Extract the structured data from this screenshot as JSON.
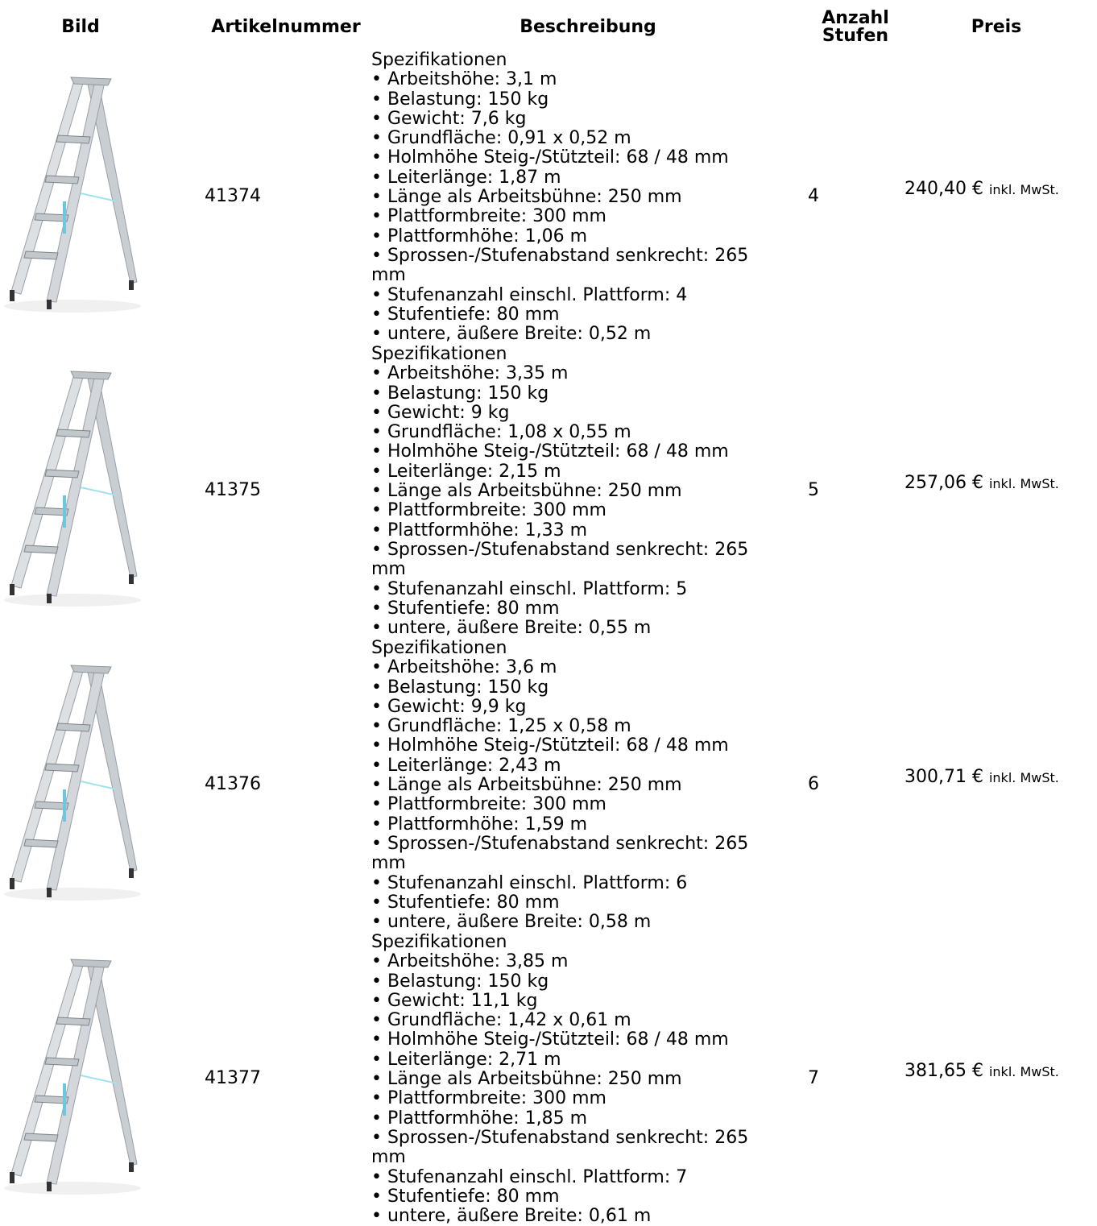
{
  "header": {
    "image": "Bild",
    "article": "Artikelnummer",
    "description": "Beschreibung",
    "steps": "Anzahl Stufen",
    "price": "Preis"
  },
  "rows": [
    {
      "article": "41374",
      "heading": "Spezifikationen",
      "specs": [
        "• Arbeitshöhe: 3,1 m",
        "• Belastung: 150 kg",
        "• Gewicht: 7,6 kg",
        "• Grundfläche: 0,91 x 0,52 m",
        "• Holmhöhe Steig-/Stützteil: 68 / 48 mm",
        "• Leiterlänge: 1,87 m",
        "• Länge als Arbeitsbühne: 250 mm",
        "• Plattformbreite: 300 mm",
        "• Plattformhöhe: 1,06 m",
        "• Sprossen-/Stufenabstand senkrecht: 265 mm",
        "• Stufenanzahl einschl. Plattform: 4",
        "• Stufentiefe: 80 mm",
        "• untere, äußere Breite: 0,52 m"
      ],
      "steps": "4",
      "price": "240,40 €",
      "price_note": "inkl. MwSt."
    },
    {
      "article": "41375",
      "heading": "Spezifikationen",
      "specs": [
        "• Arbeitshöhe: 3,35 m",
        "• Belastung: 150 kg",
        "• Gewicht: 9 kg",
        "• Grundfläche: 1,08 x 0,55 m",
        "• Holmhöhe Steig-/Stützteil: 68 / 48 mm",
        "• Leiterlänge: 2,15 m",
        "• Länge als Arbeitsbühne: 250 mm",
        "• Plattformbreite: 300 mm",
        "• Plattformhöhe: 1,33 m",
        "• Sprossen-/Stufenabstand senkrecht: 265 mm",
        "• Stufenanzahl einschl. Plattform: 5",
        "• Stufentiefe: 80 mm",
        "• untere, äußere Breite: 0,55 m"
      ],
      "steps": "5",
      "price": "257,06 €",
      "price_note": "inkl. MwSt."
    },
    {
      "article": "41376",
      "heading": "Spezifikationen",
      "specs": [
        "• Arbeitshöhe: 3,6 m",
        "• Belastung: 150 kg",
        "• Gewicht: 9,9 kg",
        "• Grundfläche: 1,25 x 0,58 m",
        "• Holmhöhe Steig-/Stützteil: 68 / 48 mm",
        "• Leiterlänge: 2,43 m",
        "• Länge als Arbeitsbühne: 250 mm",
        "• Plattformbreite: 300 mm",
        "• Plattformhöhe: 1,59 m",
        "• Sprossen-/Stufenabstand senkrecht: 265 mm",
        "• Stufenanzahl einschl. Plattform: 6",
        "• Stufentiefe: 80 mm",
        "• untere, äußere Breite: 0,58 m"
      ],
      "steps": "6",
      "price": "300,71 €",
      "price_note": "inkl. MwSt."
    },
    {
      "article": "41377",
      "heading": "Spezifikationen",
      "specs": [
        "• Arbeitshöhe: 3,85 m",
        "• Belastung: 150 kg",
        "• Gewicht: 11,1 kg",
        "• Grundfläche: 1,42 x 0,61 m",
        "• Holmhöhe Steig-/Stützteil: 68 / 48 mm",
        "• Leiterlänge: 2,71 m",
        "• Länge als Arbeitsbühne: 250 mm",
        "• Plattformbreite: 300 mm",
        "• Plattformhöhe: 1,85 m",
        "• Sprossen-/Stufenabstand senkrecht: 265 mm",
        "• Stufenanzahl einschl. Plattform: 7",
        "• Stufentiefe: 80 mm",
        "• untere, äußere Breite: 0,61 m"
      ],
      "steps": "7",
      "price": "381,65 €",
      "price_note": "inkl. MwSt."
    }
  ]
}
